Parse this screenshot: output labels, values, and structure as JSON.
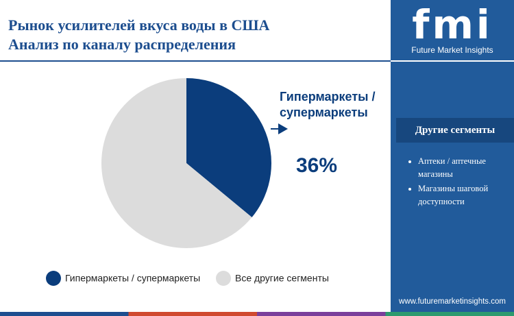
{
  "chart_data": {
    "type": "pie",
    "title": "Рынок усилителей вкуса воды в США",
    "subtitle": "Анализ по каналу распределения",
    "categories": [
      "Гипермаркеты / супермаркеты",
      "Все другие сегменты"
    ],
    "values": [
      36,
      64
    ],
    "value_labels": [
      "36%",
      null
    ],
    "colors": [
      "#0b3d7c",
      "#dcdcdc"
    ],
    "annotation": "Гипермаркеты / супермаркеты",
    "legend": "bottom"
  },
  "sidebar": {
    "logo": "fmi",
    "brand": "Future Market Insights",
    "heading": "Другие сегменты",
    "items": [
      "Аптеки / аптечные магазины",
      "Магазины шаговой доступности"
    ],
    "url": "www.futuremarketinsights.com"
  }
}
